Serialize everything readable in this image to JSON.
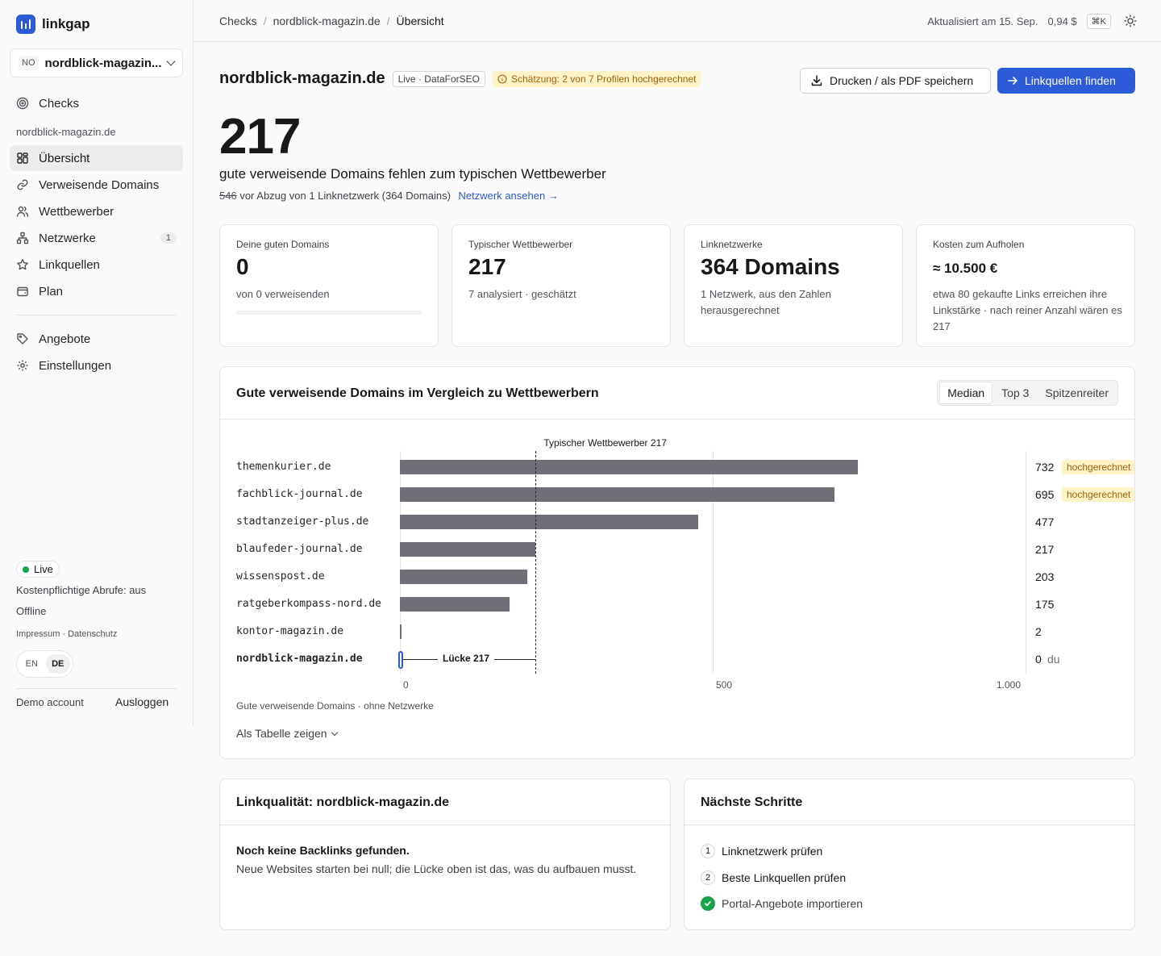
{
  "app": {
    "name": "linkgap"
  },
  "site_selector": {
    "badge": "NO",
    "name": "nordblick-magazin...."
  },
  "sidebar": {
    "top_items": [
      {
        "label": "Checks",
        "icon": "target-icon"
      }
    ],
    "group_label": "nordblick-magazin.de",
    "items": [
      {
        "label": "Übersicht",
        "icon": "grid-icon",
        "active": true
      },
      {
        "label": "Verweisende Domains",
        "icon": "link-icon"
      },
      {
        "label": "Wettbewerber",
        "icon": "users-icon"
      },
      {
        "label": "Netzwerke",
        "icon": "network-icon",
        "count": "1"
      },
      {
        "label": "Linkquellen",
        "icon": "star-icon"
      },
      {
        "label": "Plan",
        "icon": "wallet-icon"
      }
    ],
    "bottom_items": [
      {
        "label": "Angebote",
        "icon": "tag-icon"
      },
      {
        "label": "Einstellungen",
        "icon": "gear-icon"
      }
    ],
    "status": {
      "live": "Live",
      "paid_calls": "Kostenpflichtige Abrufe: aus",
      "offline": "Offline"
    },
    "legal": "Impressum · Datenschutz",
    "lang": {
      "en": "EN",
      "de": "DE"
    },
    "account": "Demo account",
    "logout": "Ausloggen"
  },
  "topbar": {
    "breadcrumbs": [
      "Checks",
      "nordblick-magazin.de",
      "Übersicht"
    ],
    "separator": "/",
    "updated": "Aktualisiert am 15. Sep.",
    "cost": "0,94 $",
    "shortcut": "⌘K"
  },
  "header": {
    "title": "nordblick-magazin.de",
    "source_badge": "Live · DataForSEO",
    "estimate_badge": "Schätzung: 2 von 7 Profilen hochgerechnet",
    "print_button": "Drucken / als PDF speichern",
    "primary_button": "Linkquellen finden"
  },
  "hero": {
    "number": "217",
    "headline": "gute verweisende Domains fehlen zum typischen Wettbewerber",
    "struck": "546",
    "sub": "vor Abzug von 1 Linknetzwerk (364 Domains)",
    "link": "Netzwerk ansehen →"
  },
  "kpis": [
    {
      "label": "Deine guten Domains",
      "value": "0",
      "note": "von 0 verweisenden",
      "progress": 0
    },
    {
      "label": "Typischer Wettbewerber",
      "value": "217",
      "note": "7 analysiert · geschätzt"
    },
    {
      "label": "Linknetzwerke",
      "value": "364 Domains",
      "note": "1 Netzwerk, aus den Zahlen herausgerechnet"
    },
    {
      "label": "Kosten zum Aufholen",
      "value": "≈ 10.500 €",
      "note": "etwa 80 gekaufte Links erreichen ihre Linkstärke · nach reiner Anzahl wären es 217"
    }
  ],
  "chart_section": {
    "title": "Gute verweisende Domains im Vergleich zu Wettbewerbern",
    "segments": [
      "Median",
      "Top 3",
      "Spitzenreiter"
    ],
    "active_segment": "Median",
    "footnote": "Gute verweisende Domains · ohne Netzwerke",
    "table_toggle": "Als Tabelle zeigen"
  },
  "chart_data": {
    "type": "bar",
    "orientation": "horizontal",
    "categories": [
      "themenkurier.de",
      "fachblick-journal.de",
      "stadtanzeiger-plus.de",
      "blaufeder-journal.de",
      "wissenspost.de",
      "ratgeberkompass-nord.de",
      "kontor-magazin.de",
      "nordblick-magazin.de"
    ],
    "values": [
      732,
      695,
      477,
      217,
      203,
      175,
      2,
      0
    ],
    "value_labels": [
      "732",
      "695",
      "477",
      "217",
      "203",
      "175",
      "2",
      "0"
    ],
    "flags": [
      "hochgerechnet",
      "hochgerechnet",
      "",
      "",
      "",
      "",
      "",
      ""
    ],
    "self_index": 7,
    "self_suffix": "du",
    "xlim": [
      0,
      1000
    ],
    "xticks": [
      0,
      500,
      1000
    ],
    "xtick_labels": [
      "0",
      "500",
      "1.000"
    ],
    "reference_line": {
      "value": 217,
      "label": "Typischer Wettbewerber 217"
    },
    "gap_label": "Lücke 217",
    "grid": true,
    "colors": {
      "bar": "#6f6f77",
      "self": "#2b5bd7",
      "flag_bg": "#fef3c7",
      "flag_text": "#a16207"
    }
  },
  "link_quality": {
    "title": "Linkqualität: nordblick-magazin.de",
    "strong": "Noch keine Backlinks gefunden.",
    "text": "Neue Websites starten bei null; die Lücke oben ist das, was du aufbauen musst."
  },
  "next_steps": {
    "title": "Nächste Schritte",
    "items": [
      {
        "num": "1",
        "label": "Linknetzwerk prüfen",
        "done": false
      },
      {
        "num": "2",
        "label": "Beste Linkquellen prüfen",
        "done": false
      },
      {
        "num": "",
        "label": "Portal-Angebote importieren",
        "done": true
      }
    ]
  },
  "colors": {
    "accent": "#2b5bd7",
    "warning_bg": "#fef3c7",
    "warning_text": "#a16207",
    "success": "#16a34a"
  }
}
